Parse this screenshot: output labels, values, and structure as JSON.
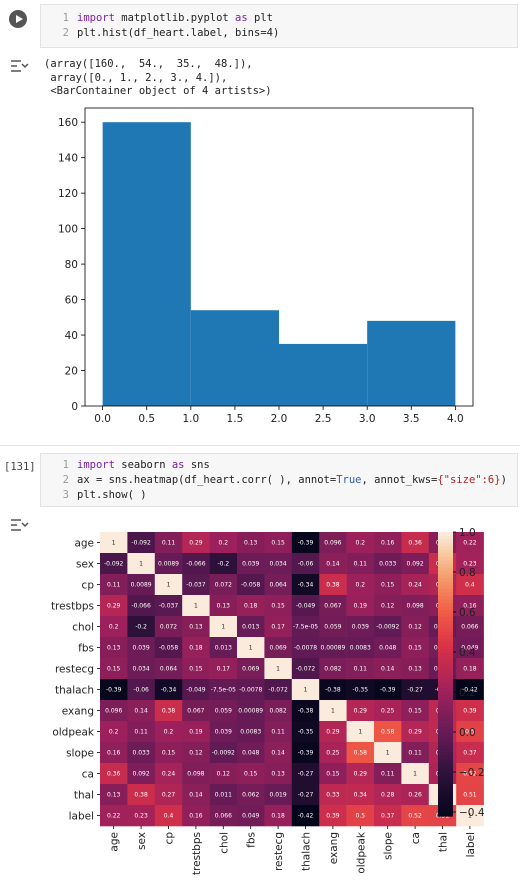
{
  "cell1": {
    "code_lines": [
      {
        "num": "1",
        "parts": [
          [
            "kw",
            "import"
          ],
          [
            "n",
            " matplotlib.pyplot "
          ],
          [
            "kw",
            "as"
          ],
          [
            "n",
            " plt"
          ]
        ]
      },
      {
        "num": "2",
        "parts": [
          [
            "n",
            "plt.hist(df_heart.label, bins=4)"
          ]
        ]
      }
    ],
    "output_lines": [
      "(array([160.,  54.,  35.,  48.]),",
      " array([0., 1., 2., 3., 4.]),",
      " <BarContainer object of 4 artists>)"
    ]
  },
  "cell2": {
    "exec_count": "[131]",
    "code_lines": [
      {
        "num": "1",
        "parts": [
          [
            "kw",
            "import"
          ],
          [
            "n",
            " seaborn "
          ],
          [
            "kw",
            "as"
          ],
          [
            "n",
            " sns"
          ]
        ]
      },
      {
        "num": "2",
        "parts": [
          [
            "n",
            "ax = sns.heatmap(df_heart.corr( ), annot="
          ],
          [
            "tr",
            "True"
          ],
          [
            "n",
            ", annot_kws="
          ],
          [
            "str",
            "{\"size\":6}"
          ],
          [
            "n",
            ")"
          ]
        ]
      },
      {
        "num": "3",
        "parts": [
          [
            "n",
            "plt.show( )"
          ]
        ]
      }
    ]
  },
  "chart_data": [
    {
      "type": "bar",
      "title": "",
      "xlabel": "",
      "ylabel": "",
      "bin_edges": [
        0,
        1,
        2,
        3,
        4
      ],
      "values": [
        160,
        54,
        35,
        48
      ],
      "xlim": [
        -0.2,
        4.2
      ],
      "ylim": [
        0,
        168
      ],
      "xticks": [
        "0.0",
        "0.5",
        "1.0",
        "1.5",
        "2.0",
        "2.5",
        "3.0",
        "3.5",
        "4.0"
      ],
      "yticks": [
        "0",
        "20",
        "40",
        "60",
        "80",
        "100",
        "120",
        "140",
        "160"
      ],
      "bar_color": "#1f77b4"
    },
    {
      "type": "heatmap",
      "labels": [
        "age",
        "sex",
        "cp",
        "trestbps",
        "chol",
        "fbs",
        "restecg",
        "thalach",
        "exang",
        "oldpeak",
        "slope",
        "ca",
        "thal",
        "label"
      ],
      "annotations": [
        [
          "1",
          "-0.092",
          "0.11",
          "0.29",
          "0.2",
          "0.13",
          "0.15",
          "-0.39",
          "0.096",
          "0.2",
          "0.16",
          "0.36",
          "0.13",
          "0.22"
        ],
        [
          "-0.092",
          "1",
          "0.0089",
          "-0.066",
          "-0.2",
          "0.039",
          "0.034",
          "-0.06",
          "0.14",
          "0.11",
          "0.033",
          "0.092",
          "0.38",
          "0.23"
        ],
        [
          "0.11",
          "0.0089",
          "1",
          "-0.037",
          "0.072",
          "-0.058",
          "0.064",
          "-0.34",
          "0.38",
          "0.2",
          "0.15",
          "0.24",
          "0.27",
          "0.4"
        ],
        [
          "0.29",
          "-0.066",
          "-0.037",
          "1",
          "0.13",
          "0.18",
          "0.15",
          "-0.049",
          "0.067",
          "0.19",
          "0.12",
          "0.098",
          "0.14",
          "0.16"
        ],
        [
          "0.2",
          "-0.2",
          "0.072",
          "0.13",
          "1",
          "0.013",
          "0.17",
          "-7.5e-05",
          "0.059",
          "0.039",
          "-0.0092",
          "0.12",
          "0.011",
          "0.066"
        ],
        [
          "0.13",
          "0.039",
          "-0.058",
          "0.18",
          "0.013",
          "1",
          "0.069",
          "-0.0078",
          "0.00089",
          "0.0083",
          "0.048",
          "0.15",
          "0.062",
          "0.049"
        ],
        [
          "0.15",
          "0.034",
          "0.064",
          "0.15",
          "0.17",
          "0.069",
          "1",
          "-0.072",
          "0.082",
          "0.11",
          "0.14",
          "0.13",
          "0.019",
          "0.18"
        ],
        [
          "-0.39",
          "-0.06",
          "-0.34",
          "-0.049",
          "-7.5e-05",
          "-0.0078",
          "-0.072",
          "1",
          "-0.38",
          "-0.35",
          "-0.39",
          "-0.27",
          "-0.27",
          "-0.42"
        ],
        [
          "0.096",
          "0.14",
          "0.38",
          "0.067",
          "0.059",
          "0.00089",
          "0.082",
          "-0.38",
          "1",
          "0.29",
          "0.25",
          "0.15",
          "0.33",
          "0.39"
        ],
        [
          "0.2",
          "0.11",
          "0.2",
          "0.19",
          "0.039",
          "0.0083",
          "0.11",
          "-0.35",
          "0.29",
          "1",
          "0.58",
          "0.29",
          "0.34",
          "0.5"
        ],
        [
          "0.16",
          "0.033",
          "0.15",
          "0.12",
          "-0.0092",
          "0.048",
          "0.14",
          "-0.39",
          "0.25",
          "0.58",
          "1",
          "0.11",
          "0.28",
          "0.37"
        ],
        [
          "0.36",
          "0.092",
          "0.24",
          "0.098",
          "0.12",
          "0.15",
          "0.13",
          "-0.27",
          "0.15",
          "0.29",
          "0.11",
          "1",
          "0.26",
          "0.52"
        ],
        [
          "0.13",
          "0.38",
          "0.27",
          "0.14",
          "0.011",
          "0.062",
          "0.019",
          "-0.27",
          "0.33",
          "0.34",
          "0.28",
          "0.26",
          "1",
          "0.51"
        ],
        [
          "0.22",
          "0.23",
          "0.4",
          "0.16",
          "0.066",
          "0.049",
          "0.18",
          "-0.42",
          "0.39",
          "0.5",
          "0.37",
          "0.52",
          "0.51",
          "1"
        ]
      ],
      "colorbar_ticks": [
        "1.0",
        "0.8",
        "0.6",
        "0.4",
        "0.2",
        "0.0",
        "−0.2",
        "−0.4"
      ],
      "color_range": [
        -0.42,
        1.0
      ]
    }
  ]
}
